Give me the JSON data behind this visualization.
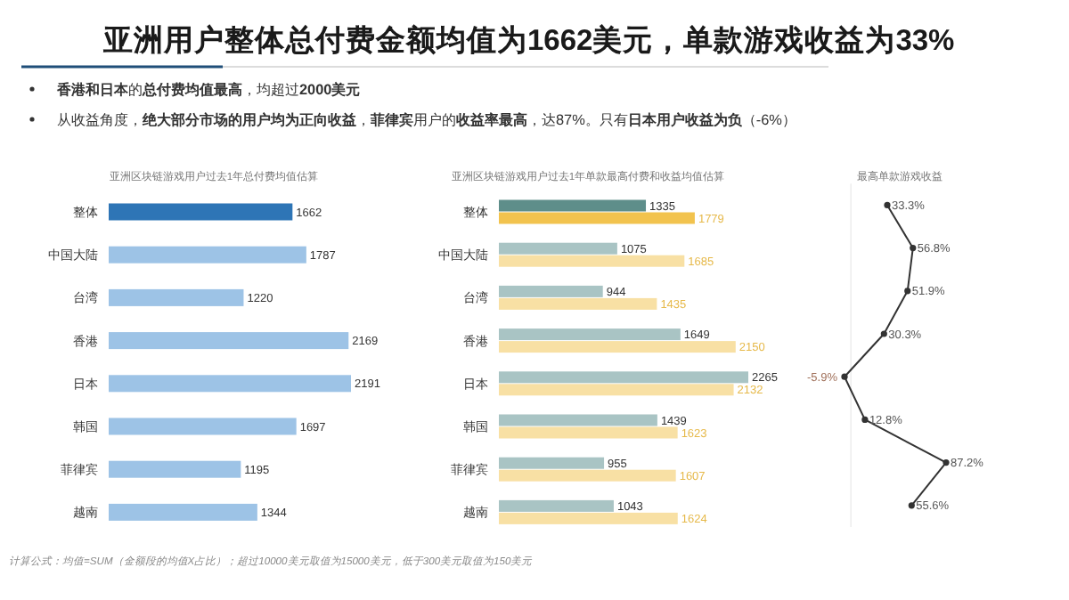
{
  "chart_data": [
    {
      "type": "other",
      "title": "亚洲用户整体总付费金额均值为1662美元，单款游戏收益为33%",
      "annotations": [
        "**香港和日本**的**总付费均值最高**，均超过**2000美元**",
        "从收益角度，**绝大部分市场的用户均为正向收益**，**菲律宾**用户的**收益率最高**，达87%。只有**日本用户收益为负**（-6%）",
        "计算公式：均值=SUM（金额段的均值X占比）；超过10000美元取值为15000美元，低于300美元取值为150美元"
      ]
    },
    {
      "type": "bar",
      "orientation": "horizontal",
      "title": "亚洲区块链游戏用户过去1年总付费均值估算",
      "categories": [
        "整体",
        "中国大陆",
        "台湾",
        "香港",
        "日本",
        "韩国",
        "菲律宾",
        "越南"
      ],
      "data_labels": true,
      "series": [
        {
          "values": [
            1662,
            1787,
            1220,
            2169,
            2191,
            1697,
            1195,
            1344
          ],
          "colors": [
            "#2e75b6",
            "#9dc3e6",
            "#9dc3e6",
            "#9dc3e6",
            "#9dc3e6",
            "#9dc3e6",
            "#9dc3e6",
            "#9dc3e6"
          ]
        }
      ]
    },
    {
      "type": "bar",
      "orientation": "horizontal",
      "title": "亚洲区块链游戏用户过去1年单款最高付费和收益均值估算",
      "categories": [
        "整体",
        "中国大陆",
        "台湾",
        "香港",
        "日本",
        "韩国",
        "菲律宾",
        "越南"
      ],
      "data_labels": true,
      "series": [
        {
          "values": [
            1335,
            1075,
            944,
            1649,
            2265,
            1439,
            955,
            1043
          ],
          "colors": [
            "#5e8e8a",
            "#a9c4c4",
            "#a9c4c4",
            "#a9c4c4",
            "#a9c4c4",
            "#a9c4c4",
            "#a9c4c4",
            "#a9c4c4"
          ]
        },
        {
          "values": [
            1779,
            1685,
            1435,
            2150,
            2132,
            1623,
            1607,
            1624
          ],
          "colors": [
            "#f2c34e",
            "#f8e0a4",
            "#f8e0a4",
            "#f8e0a4",
            "#f8e0a4",
            "#f8e0a4",
            "#f8e0a4",
            "#f8e0a4"
          ]
        }
      ]
    },
    {
      "type": "line",
      "orientation": "horizontal",
      "title": "最高单款游戏收益",
      "categories": [
        null,
        null,
        null,
        null,
        null,
        null,
        null,
        null
      ],
      "marker": "circle",
      "series": [
        {
          "color": "#333333",
          "values": [
            33.3,
            56.8,
            51.9,
            30.3,
            -5.9,
            12.8,
            87.2,
            55.6
          ],
          "value_labels": [
            "33.3%",
            "56.8%",
            "51.9%",
            "30.3%",
            "-5.9%",
            "12.8%",
            "87.2%",
            "55.6%"
          ]
        }
      ]
    }
  ]
}
